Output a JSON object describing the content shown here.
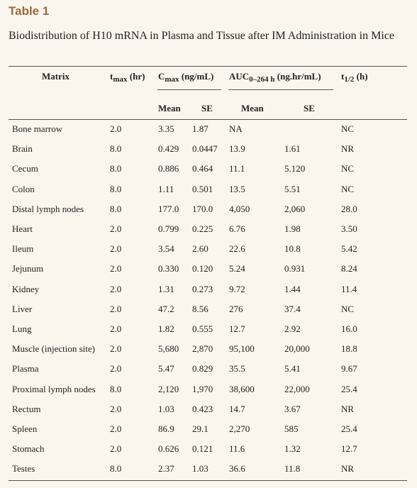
{
  "header": {
    "title": "Table 1",
    "caption": "Biodistribution of H10 mRNA in Plasma and Tissue after IM Administration in Mice"
  },
  "table": {
    "columns": [
      {
        "main": "Matrix"
      },
      {
        "main": "t",
        "sub": "max",
        "rest": " (hr)"
      },
      {
        "main": "C",
        "sub": "max",
        "rest": " (ng/mL)"
      },
      {
        "main": "AUC",
        "sub": "0–264 h",
        "rest": " (ng.hr/mL)"
      },
      {
        "main": "t",
        "sub": "1/2",
        "rest": " (h)"
      }
    ],
    "subcolumns": [
      "Mean",
      "SE",
      "Mean",
      "SE"
    ],
    "rows": [
      [
        "Bone marrow",
        "2.0",
        "3.35",
        "1.87",
        "NA",
        "",
        "NC"
      ],
      [
        "Brain",
        "8.0",
        "0.429",
        "0.0447",
        "13.9",
        "1.61",
        "NR"
      ],
      [
        "Cecum",
        "8.0",
        "0.886",
        "0.464",
        "11.1",
        "5.120",
        "NC"
      ],
      [
        "Colon",
        "8.0",
        "1.11",
        "0.501",
        "13.5",
        "5.51",
        "NC"
      ],
      [
        "Distal lymph nodes",
        "8.0",
        "177.0",
        "170.0",
        "4,050",
        "2,060",
        "28.0"
      ],
      [
        "Heart",
        "2.0",
        "0.799",
        "0.225",
        "6.76",
        "1.98",
        "3.50"
      ],
      [
        "Ileum",
        "2.0",
        "3.54",
        "2.60",
        "22.6",
        "10.8",
        "5.42"
      ],
      [
        "Jejunum",
        "2.0",
        "0.330",
        "0.120",
        "5.24",
        "0.931",
        "8.24"
      ],
      [
        "Kidney",
        "2.0",
        "1.31",
        "0.273",
        "9.72",
        "1.44",
        "11.4"
      ],
      [
        "Liver",
        "2.0",
        "47.2",
        "8.56",
        "276",
        "37.4",
        "NC"
      ],
      [
        "Lung",
        "2.0",
        "1.82",
        "0.555",
        "12.7",
        "2.92",
        "16.0"
      ],
      [
        "Muscle (injection site)",
        "2.0",
        "5,680",
        "2,870",
        "95,100",
        "20,000",
        "18.8"
      ],
      [
        "Plasma",
        "2.0",
        "5.47",
        "0.829",
        "35.5",
        "5.41",
        "9.67"
      ],
      [
        "Proximal lymph nodes",
        "8.0",
        "2,120",
        "1,970",
        "38,600",
        "22,000",
        "25.4"
      ],
      [
        "Rectum",
        "2.0",
        "1.03",
        "0.423",
        "14.7",
        "3.67",
        "NR"
      ],
      [
        "Spleen",
        "2.0",
        "86.9",
        "29.1",
        "2,270",
        "585",
        "25.4"
      ],
      [
        "Stomach",
        "2.0",
        "0.626",
        "0.121",
        "11.6",
        "1.32",
        "12.7"
      ],
      [
        "Testes",
        "8.0",
        "2.37",
        "1.03",
        "36.6",
        "11.8",
        "NR"
      ]
    ]
  }
}
